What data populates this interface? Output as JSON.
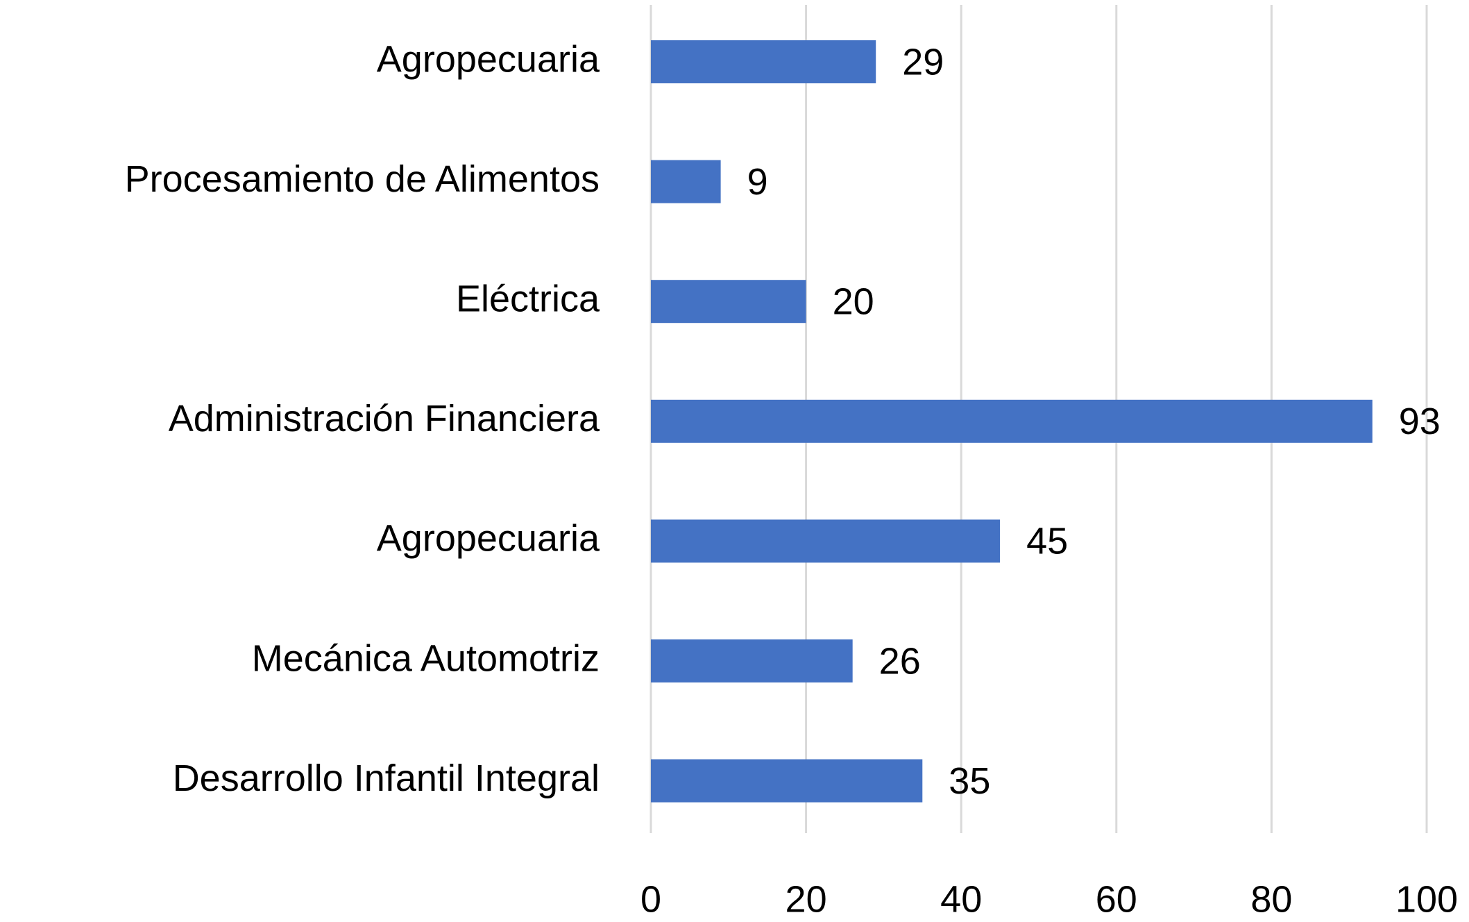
{
  "chart_data": {
    "type": "bar",
    "orientation": "horizontal",
    "categories": [
      "Agropecuaria",
      "Procesamiento de Alimentos",
      "Eléctrica",
      "Administración Financiera",
      "Agropecuaria",
      "Mecánica Automotriz",
      "Desarrollo Infantil Integral"
    ],
    "values": [
      29,
      9,
      20,
      93,
      45,
      26,
      35
    ],
    "color": "#4472c4",
    "xlim": [
      0,
      100
    ],
    "xticks": [
      0,
      20,
      40,
      60,
      80,
      100
    ],
    "grid": true
  }
}
